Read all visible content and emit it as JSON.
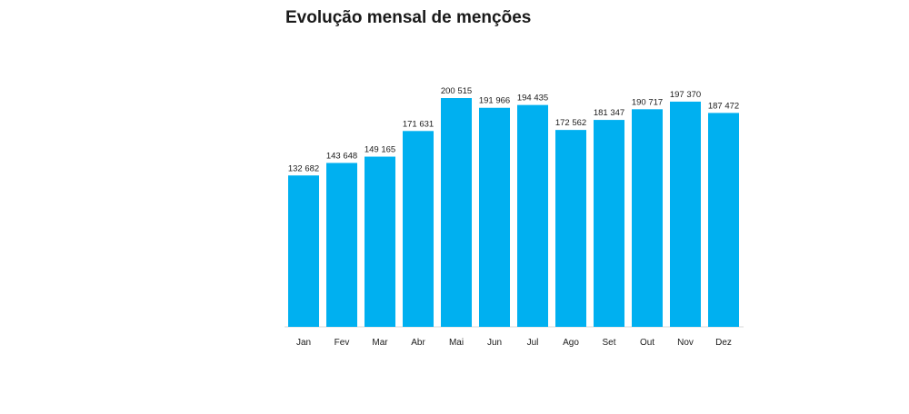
{
  "chart_data": {
    "type": "bar",
    "title": "Evolução mensal de menções",
    "categories": [
      "Jan",
      "Fev",
      "Mar",
      "Abr",
      "Mai",
      "Jun",
      "Jul",
      "Ago",
      "Set",
      "Out",
      "Nov",
      "Dez"
    ],
    "values": [
      132682,
      143648,
      149165,
      171631,
      200515,
      191966,
      194435,
      172562,
      181347,
      190717,
      197370,
      187472
    ],
    "data_labels": [
      "132 682",
      "143 648",
      "149 165",
      "171 631",
      "200 515",
      "191 966",
      "194 435",
      "172 562",
      "181 347",
      "190 717",
      "197 370",
      "187 472"
    ],
    "ylim": [
      0,
      200515
    ],
    "grid": false,
    "legend": "none",
    "bar_color": "#00b0f0"
  }
}
